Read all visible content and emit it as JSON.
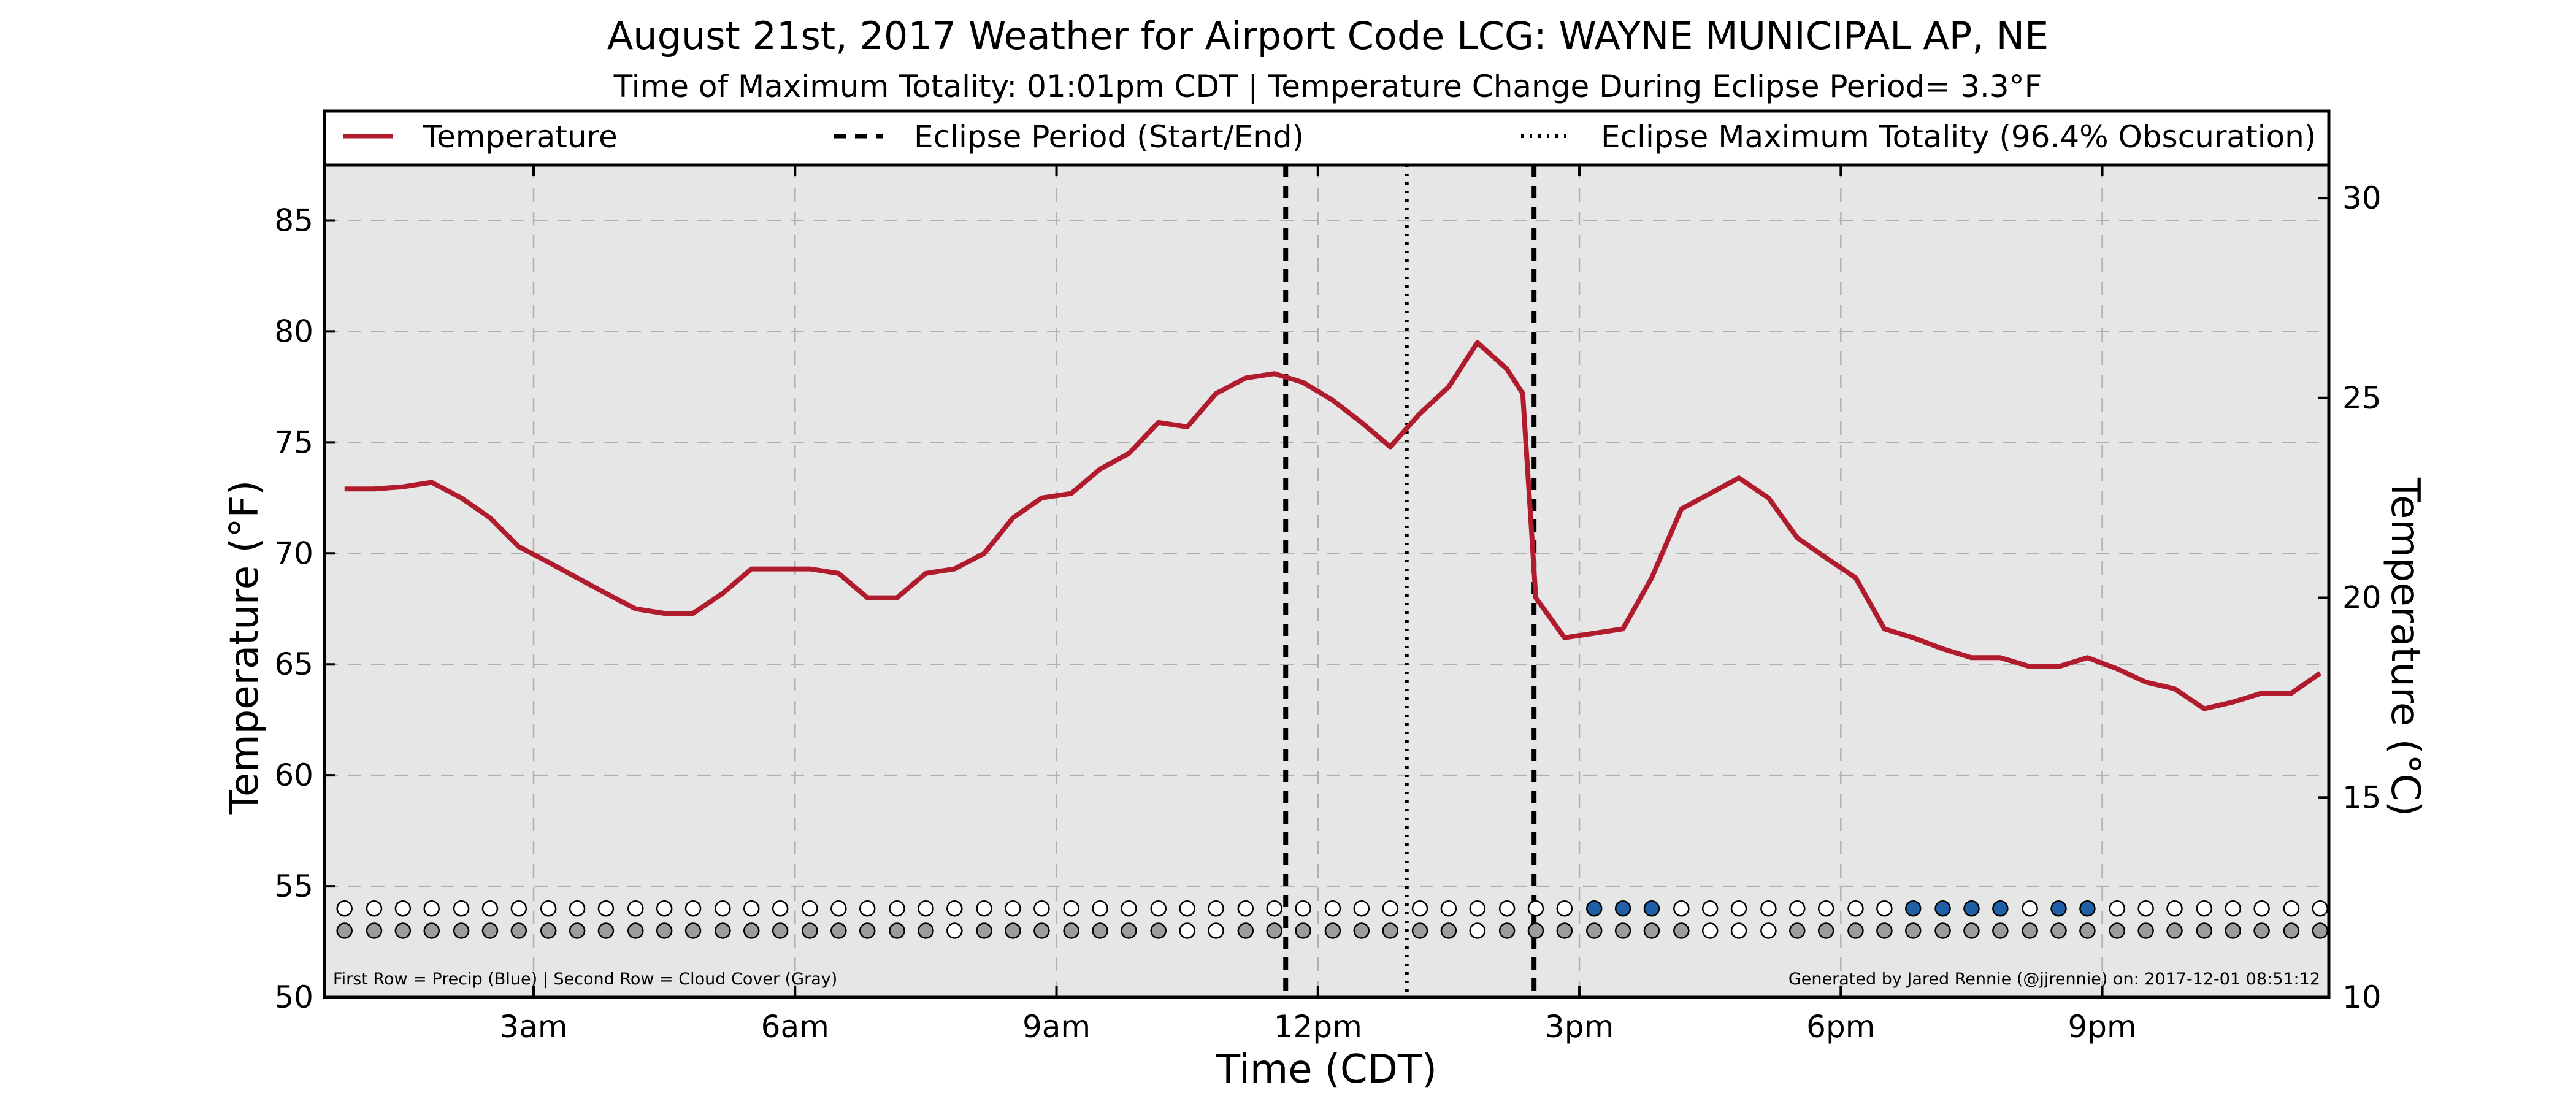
{
  "chart_data": {
    "type": "line",
    "title": "August 21st, 2017 Weather for Airport Code LCG: WAYNE MUNICIPAL AP, NE",
    "subtitle": "Time of Maximum Totality: 01:01pm CDT | Temperature Change During Eclipse Period= 3.3°F",
    "xlabel": "Time (CDT)",
    "ylabel": "Temperature (°F)",
    "ylabel_right": "Temperature (°C)",
    "xlim": [
      0.6,
      23.6
    ],
    "ylim": [
      50,
      87.5
    ],
    "ylim_right": [
      10,
      30.83
    ],
    "x_ticks": [
      {
        "x": 3,
        "label": "3am"
      },
      {
        "x": 6,
        "label": "6am"
      },
      {
        "x": 9,
        "label": "9am"
      },
      {
        "x": 12,
        "label": "12pm"
      },
      {
        "x": 15,
        "label": "3pm"
      },
      {
        "x": 18,
        "label": "6pm"
      },
      {
        "x": 21,
        "label": "9pm"
      }
    ],
    "y_ticks": [
      50,
      55,
      60,
      65,
      70,
      75,
      80,
      85
    ],
    "y_ticks_right": [
      10,
      15,
      20,
      25,
      30
    ],
    "grid": true,
    "legend": {
      "placement": "top",
      "entries": [
        {
          "label": "Temperature",
          "style": "solid"
        },
        {
          "label": "Eclipse Period (Start/End)",
          "style": "dashed"
        },
        {
          "label": "Eclipse Maximum Totality (96.4% Obscuration)",
          "style": "dotted"
        }
      ]
    },
    "series": [
      {
        "name": "Temperature",
        "color": "#b01c2e",
        "x": [
          0.83,
          1.17,
          1.5,
          1.83,
          2.17,
          2.5,
          2.83,
          3.17,
          3.5,
          3.83,
          4.17,
          4.5,
          4.83,
          5.17,
          5.5,
          5.83,
          6.17,
          6.5,
          6.83,
          7.17,
          7.5,
          7.83,
          8.17,
          8.5,
          8.83,
          9.17,
          9.5,
          9.83,
          10.17,
          10.5,
          10.83,
          11.17,
          11.5,
          11.83,
          12.17,
          12.5,
          12.83,
          13.17,
          13.5,
          13.83,
          14.17,
          14.35,
          14.5,
          14.83,
          15.17,
          15.5,
          15.83,
          16.17,
          16.5,
          16.83,
          17.17,
          17.5,
          17.83,
          18.17,
          18.5,
          18.83,
          19.17,
          19.5,
          19.83,
          20.17,
          20.5,
          20.83,
          21.17,
          21.5,
          21.83,
          22.17,
          22.5,
          22.83,
          23.17,
          23.5
        ],
        "values": [
          72.9,
          72.9,
          73.0,
          73.2,
          72.5,
          71.6,
          70.3,
          69.6,
          68.9,
          68.2,
          67.5,
          67.3,
          67.3,
          68.2,
          69.3,
          69.3,
          69.3,
          69.1,
          68.0,
          68.0,
          69.1,
          69.3,
          70.0,
          71.6,
          72.5,
          72.7,
          73.8,
          74.5,
          75.9,
          75.7,
          77.2,
          77.9,
          78.1,
          77.7,
          76.9,
          75.9,
          74.8,
          76.3,
          77.5,
          79.5,
          78.3,
          77.2,
          68.0,
          66.2,
          66.4,
          66.6,
          68.9,
          72.0,
          72.7,
          73.4,
          72.5,
          70.7,
          69.8,
          68.9,
          66.6,
          66.2,
          65.7,
          65.3,
          65.3,
          64.9,
          64.9,
          65.3,
          64.8,
          64.2,
          63.9,
          63.0,
          63.3,
          63.7,
          63.7,
          64.6
        ]
      }
    ],
    "eclipse": {
      "start": 11.63,
      "end": 14.48,
      "max_totality": 13.02
    },
    "observation_rows": {
      "first_row": "precip",
      "second_row": "cloud_cover",
      "times": [
        0.83,
        1.17,
        1.5,
        1.83,
        2.17,
        2.5,
        2.83,
        3.17,
        3.5,
        3.83,
        4.17,
        4.5,
        4.83,
        5.17,
        5.5,
        5.83,
        6.17,
        6.5,
        6.83,
        7.17,
        7.5,
        7.83,
        8.17,
        8.5,
        8.83,
        9.17,
        9.5,
        9.83,
        10.17,
        10.5,
        10.83,
        11.17,
        11.5,
        11.83,
        12.17,
        12.5,
        12.83,
        13.17,
        13.5,
        13.83,
        14.17,
        14.5,
        14.83,
        15.17,
        15.5,
        15.83,
        16.17,
        16.5,
        16.83,
        17.17,
        17.5,
        17.83,
        18.17,
        18.5,
        18.83,
        19.17,
        19.5,
        19.83,
        20.17,
        20.5,
        20.83,
        21.17,
        21.5,
        21.83,
        22.17,
        22.5,
        22.83,
        23.17,
        23.5
      ],
      "precip": [
        0,
        0,
        0,
        0,
        0,
        0,
        0,
        0,
        0,
        0,
        0,
        0,
        0,
        0,
        0,
        0,
        0,
        0,
        0,
        0,
        0,
        0,
        0,
        0,
        0,
        0,
        0,
        0,
        0,
        0,
        0,
        0,
        0,
        0,
        0,
        0,
        0,
        0,
        0,
        0,
        0,
        0,
        0,
        1,
        1,
        1,
        0,
        0,
        0,
        0,
        0,
        0,
        0,
        0,
        1,
        1,
        1,
        1,
        0,
        1,
        1,
        0,
        0,
        0,
        0,
        0,
        0,
        0,
        0
      ],
      "cloud": [
        1,
        1,
        1,
        1,
        1,
        1,
        1,
        1,
        1,
        1,
        1,
        1,
        1,
        1,
        1,
        1,
        1,
        1,
        1,
        1,
        1,
        0,
        1,
        1,
        1,
        1,
        1,
        1,
        1,
        0,
        0,
        1,
        1,
        1,
        1,
        1,
        1,
        1,
        1,
        0,
        1,
        1,
        1,
        1,
        1,
        1,
        1,
        0,
        0,
        0,
        1,
        1,
        1,
        1,
        1,
        1,
        1,
        1,
        1,
        1,
        1,
        1,
        1,
        1,
        1,
        1,
        1,
        1,
        1
      ],
      "precip_color": "#1f5fa8",
      "cloud_color": "#9c9c9c",
      "empty_color": "#ffffff"
    },
    "annotations": {
      "left": "First Row = Precip (Blue) | Second Row = Cloud Cover (Gray)",
      "right": "Generated by Jared Rennie (@jjrennie) on: 2017-12-01 08:51:12"
    },
    "colors": {
      "plot_background": "#e6e6e6",
      "line": "#b01c2e",
      "grid": "#b0b0b0"
    }
  }
}
